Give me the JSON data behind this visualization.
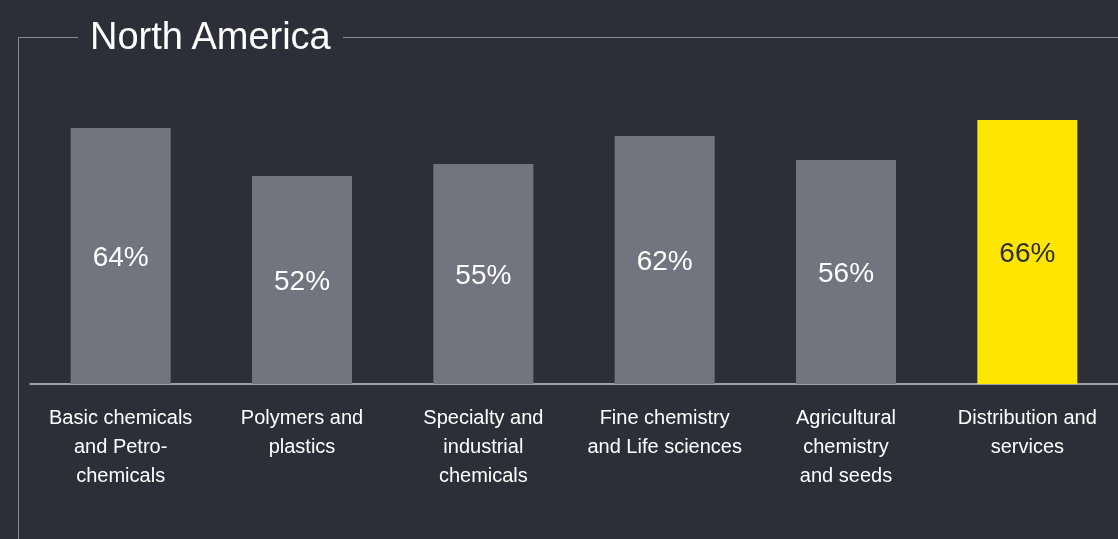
{
  "chart_data": {
    "type": "bar",
    "title": "North America",
    "categories": [
      "Basic chemicals\nand Petro-\nchemicals",
      "Polymers and\nplastics",
      "Specialty and\nindustrial\nchemicals",
      "Fine chemistry\nand Life sciences",
      "Agricultural\nchemistry\nand seeds",
      "Distribution and\nservices"
    ],
    "values": [
      64,
      52,
      55,
      62,
      56,
      66
    ],
    "value_labels": [
      "64%",
      "52%",
      "55%",
      "62%",
      "56%",
      "66%"
    ],
    "colors": [
      "#747480",
      "#747480",
      "#747480",
      "#747480",
      "#747480",
      "#ffe600"
    ]
  }
}
